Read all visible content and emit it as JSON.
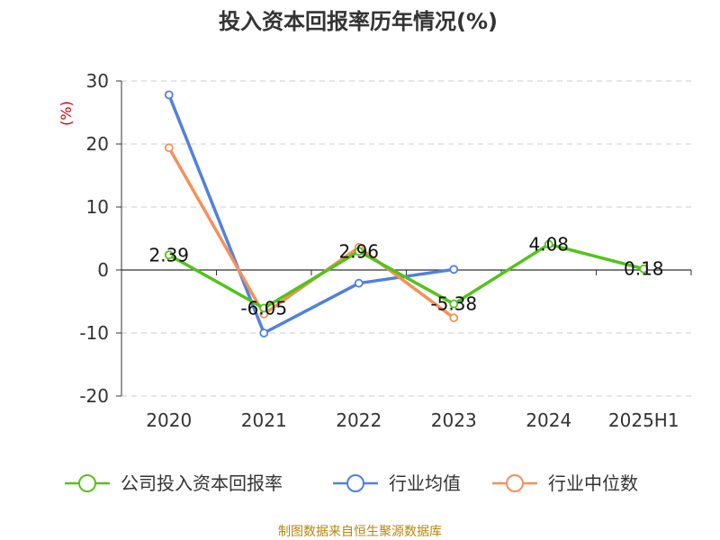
{
  "chart_data": {
    "type": "line",
    "title": "投入资本回报率历年情况(%)",
    "ylabel": "(%)",
    "categories": [
      "2020",
      "2021",
      "2022",
      "2023",
      "2024",
      "2025H1"
    ],
    "ylim": [
      -20,
      30
    ],
    "yticks": [
      30,
      20,
      10,
      0,
      -10,
      -20
    ],
    "grid": true,
    "legend_position": "bottom",
    "series": [
      {
        "name": "公司投入资本回报率",
        "color": "#52c41a",
        "values": [
          2.39,
          -6.05,
          2.96,
          -5.38,
          4.08,
          0.18
        ],
        "labels": [
          "2.39",
          "-6.05",
          "2.96",
          "-5.38",
          "4.08",
          "0.18"
        ]
      },
      {
        "name": "行业均值",
        "color": "#4f81dd",
        "values": [
          27.8,
          -10.0,
          -2.1,
          0.1,
          null,
          null
        ]
      },
      {
        "name": "行业中位数",
        "color": "#f5905a",
        "values": [
          19.4,
          -7.0,
          3.6,
          -7.6,
          null,
          null
        ]
      }
    ]
  },
  "source": "制图数据来自恒生聚源数据库"
}
